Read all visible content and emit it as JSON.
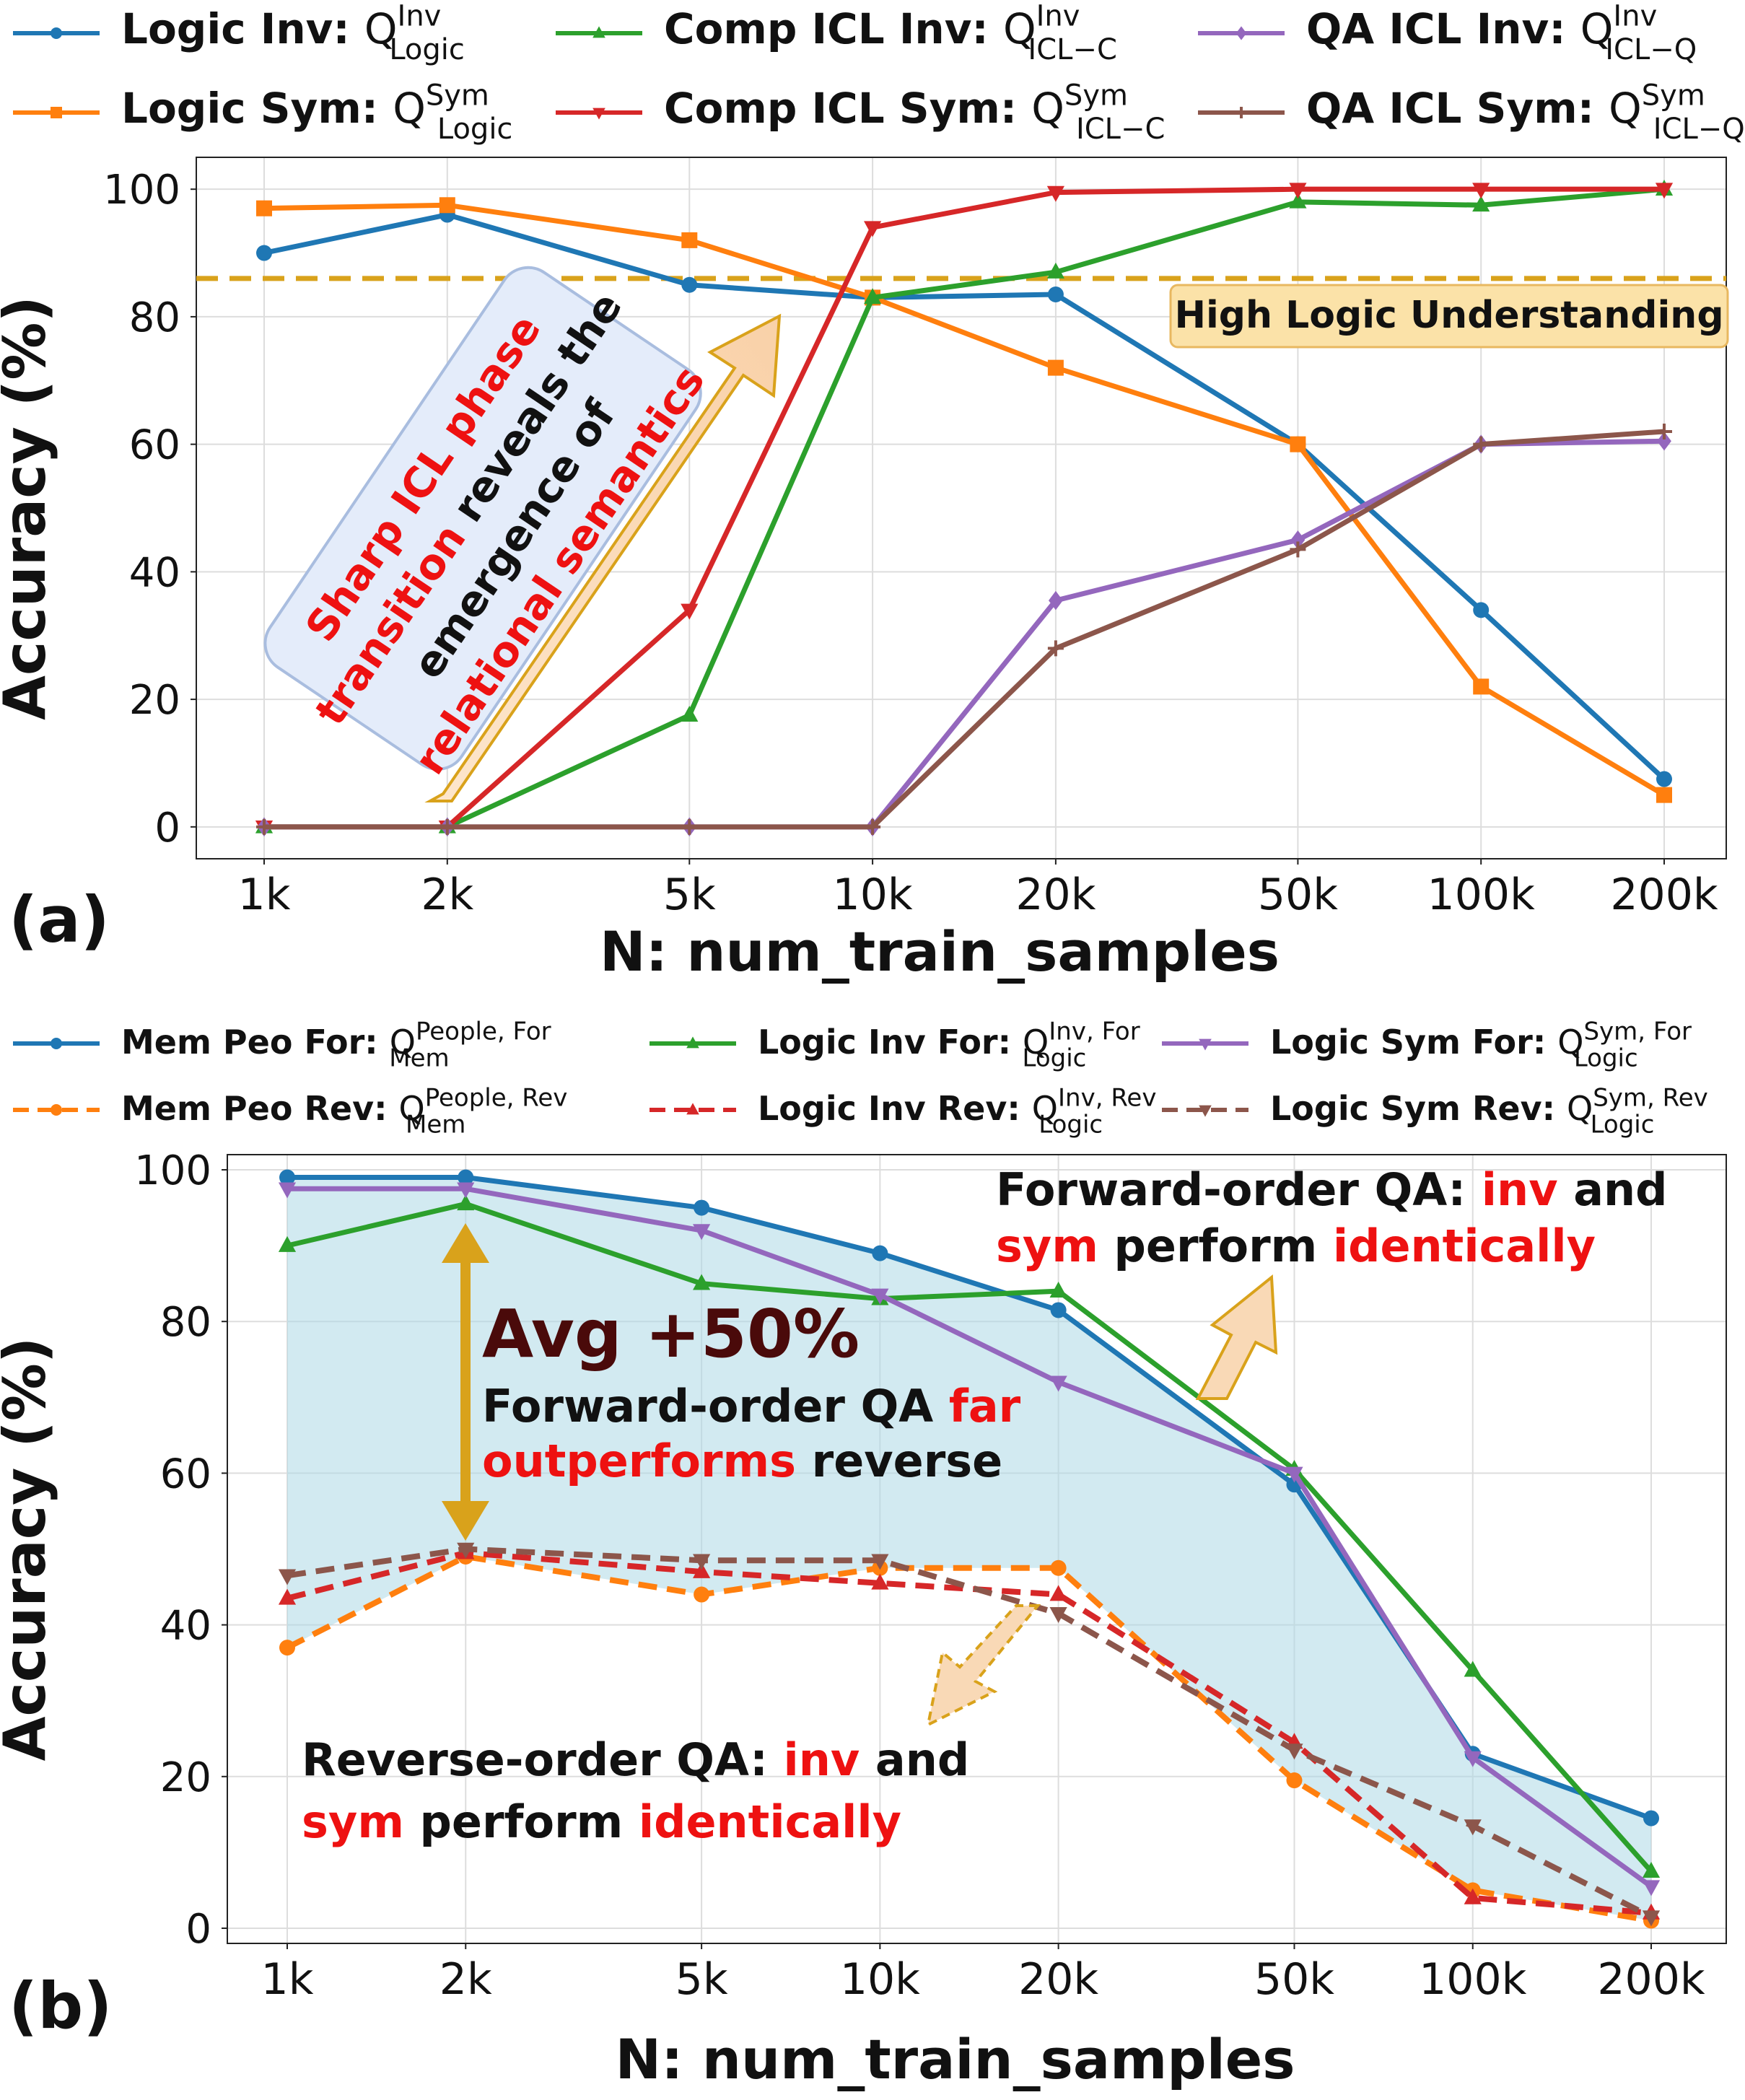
{
  "x_categories": [
    "1k",
    "2k",
    "5k",
    "10k",
    "20k",
    "50k",
    "100k",
    "200k"
  ],
  "chart_data": [
    {
      "type": "line",
      "panel_label": "(a)",
      "xlabel": "N: num_train_samples",
      "ylabel": "Accuracy (%)",
      "xscale": "log",
      "x": [
        1000,
        2000,
        5000,
        10000,
        20000,
        50000,
        100000,
        200000
      ],
      "ylim": [
        -5,
        105
      ],
      "yticks": [
        "0",
        "20",
        "40",
        "60",
        "80",
        "100"
      ],
      "grid": true,
      "legend_position": "top",
      "reference_line": {
        "y": 86,
        "label": "High Logic Understanding",
        "color": "#d9a21b"
      },
      "series": [
        {
          "name": "Logic Inv",
          "symbol": "Q",
          "sup": "Inv",
          "sub": "Logic",
          "color": "#1f77b4",
          "marker": "circle",
          "values": [
            90,
            96,
            85,
            83,
            83.5,
            60,
            34,
            7.5
          ]
        },
        {
          "name": "Logic Sym",
          "symbol": "Q",
          "sup": "Sym",
          "sub": "Logic",
          "color": "#ff7f0e",
          "marker": "square",
          "values": [
            97,
            97.5,
            92,
            83,
            72,
            60,
            22,
            5
          ]
        },
        {
          "name": "Comp ICL Inv",
          "symbol": "Q",
          "sup": "Inv",
          "sub": "ICL−C",
          "color": "#2ca02c",
          "marker": "triangle-up",
          "values": [
            0,
            0,
            17.5,
            83,
            87,
            98,
            97.5,
            100
          ]
        },
        {
          "name": "Comp ICL Sym",
          "symbol": "Q",
          "sup": "Sym",
          "sub": "ICL−C",
          "color": "#d62728",
          "marker": "triangle-down",
          "values": [
            0,
            0,
            34,
            94,
            99.5,
            100,
            100,
            100
          ]
        },
        {
          "name": "QA ICL Inv",
          "symbol": "Q",
          "sup": "Inv",
          "sub": "ICL−Q",
          "color": "#9467bd",
          "marker": "diamond",
          "values": [
            0,
            0,
            0,
            0,
            35.5,
            45,
            60,
            60.5
          ]
        },
        {
          "name": "QA ICL Sym",
          "symbol": "Q",
          "sup": "Sym",
          "sub": "ICL−Q",
          "color": "#8c564b",
          "marker": "plus",
          "values": [
            0,
            0,
            0,
            0,
            28,
            43.5,
            60,
            62
          ]
        }
      ],
      "annotations": [
        {
          "lines": [
            [
              {
                "t": "Sharp ICL phase",
                "c": "#ee1111"
              }
            ],
            [
              {
                "t": "transition",
                "c": "#ee1111"
              },
              {
                "t": " reveals the",
                "c": "#111111"
              }
            ],
            [
              {
                "t": "emergence of",
                "c": "#111111"
              }
            ],
            [
              {
                "t": "relational semantics",
                "c": "#ee1111"
              }
            ]
          ]
        }
      ]
    },
    {
      "type": "line",
      "panel_label": "(b)",
      "xlabel": "N: num_train_samples",
      "ylabel": "Accuracy (%)",
      "xscale": "log",
      "x": [
        1000,
        2000,
        5000,
        10000,
        20000,
        50000,
        100000,
        200000
      ],
      "ylim": [
        -2,
        102
      ],
      "yticks": [
        "0",
        "20",
        "40",
        "60",
        "80",
        "100"
      ],
      "grid": true,
      "legend_position": "top",
      "fill_between": {
        "upper": "Mem Peo For",
        "lower": "Mem Peo Rev",
        "color": "#add8e6"
      },
      "series": [
        {
          "name": "Mem Peo For",
          "symbol": "Q",
          "sup": "People, For",
          "sub": "Mem",
          "color": "#1f77b4",
          "marker": "circle",
          "dashed": false,
          "values": [
            99,
            99,
            95,
            89,
            81.5,
            58.5,
            23,
            14.5
          ]
        },
        {
          "name": "Mem Peo Rev",
          "symbol": "Q",
          "sup": "People, Rev",
          "sub": "Mem",
          "color": "#ff7f0e",
          "marker": "circle",
          "dashed": true,
          "values": [
            37,
            49,
            44,
            47.5,
            47.5,
            19.5,
            5,
            1
          ]
        },
        {
          "name": "Logic Inv For",
          "symbol": "Q",
          "sup": "Inv, For",
          "sub": "Logic",
          "color": "#2ca02c",
          "marker": "triangle-up",
          "dashed": false,
          "values": [
            90,
            95.5,
            85,
            83,
            84,
            60.5,
            34,
            7.5
          ]
        },
        {
          "name": "Logic Inv Rev",
          "symbol": "Q",
          "sup": "Inv, Rev",
          "sub": "Logic",
          "color": "#d62728",
          "marker": "triangle-up",
          "dashed": true,
          "values": [
            43.5,
            49.5,
            47,
            45.5,
            44,
            24.5,
            4,
            2
          ]
        },
        {
          "name": "Logic Sym For",
          "symbol": "Q",
          "sup": "Sym, For",
          "sub": "Logic",
          "color": "#9467bd",
          "marker": "triangle-down",
          "dashed": false,
          "values": [
            97.5,
            97.5,
            92,
            83.5,
            72,
            60,
            22.5,
            5.5
          ]
        },
        {
          "name": "Logic Sym Rev",
          "symbol": "Q",
          "sup": "Sym, Rev",
          "sub": "Logic",
          "color": "#8c564b",
          "marker": "triangle-down",
          "dashed": true,
          "values": [
            46.5,
            50,
            48.5,
            48.5,
            41.5,
            23.5,
            13.5,
            1.5
          ]
        }
      ],
      "annotations": [
        {
          "lines": [
            [
              {
                "t": "Avg +50%",
                "c": "#4a0a0a"
              }
            ]
          ]
        },
        {
          "lines": [
            [
              {
                "t": "Forward-order QA ",
                "c": "#111111"
              },
              {
                "t": "far",
                "c": "#ee1111"
              }
            ],
            [
              {
                "t": "outperforms",
                "c": "#ee1111"
              },
              {
                "t": " reverse",
                "c": "#111111"
              }
            ]
          ]
        },
        {
          "lines": [
            [
              {
                "t": "Forward-order QA: ",
                "c": "#111111"
              },
              {
                "t": "inv",
                "c": "#ee1111"
              },
              {
                "t": " and",
                "c": "#111111"
              }
            ],
            [
              {
                "t": "sym",
                "c": "#ee1111"
              },
              {
                "t": " perform ",
                "c": "#111111"
              },
              {
                "t": "identically",
                "c": "#ee1111"
              }
            ]
          ]
        },
        {
          "lines": [
            [
              {
                "t": "Reverse-order QA: ",
                "c": "#111111"
              },
              {
                "t": "inv",
                "c": "#ee1111"
              },
              {
                "t": " and",
                "c": "#111111"
              }
            ],
            [
              {
                "t": "sym",
                "c": "#ee1111"
              },
              {
                "t": " perform ",
                "c": "#111111"
              },
              {
                "t": "identically",
                "c": "#ee1111"
              }
            ]
          ]
        }
      ]
    }
  ]
}
